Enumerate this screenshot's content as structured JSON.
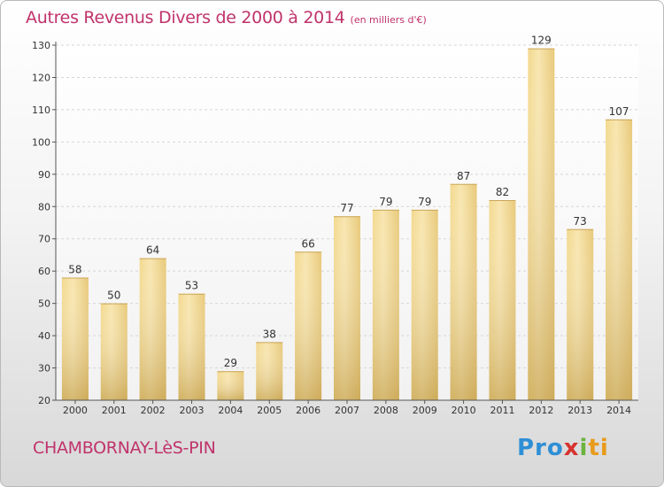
{
  "header": {
    "title": "Autres Revenus Divers de 2000 à 2014",
    "subtitle": "(en milliers d'€)"
  },
  "footer": {
    "place": "CHAMBORNAY-LèS-PIN",
    "logo": [
      "Pro",
      "x",
      "i",
      "ti"
    ]
  },
  "colors": {
    "title": "#c0336b",
    "bar_light": "#f6dea0",
    "bar_dark": "#c9a656"
  },
  "chart_data": {
    "type": "bar",
    "title": "Autres Revenus Divers de 2000 à 2014",
    "xlabel": "",
    "ylabel": "",
    "categories": [
      "2000",
      "2001",
      "2002",
      "2003",
      "2004",
      "2005",
      "2006",
      "2007",
      "2008",
      "2009",
      "2010",
      "2011",
      "2012",
      "2013",
      "2014"
    ],
    "values": [
      58,
      50,
      64,
      53,
      29,
      38,
      66,
      77,
      79,
      79,
      87,
      82,
      129,
      73,
      107
    ],
    "ylim": [
      20,
      130
    ],
    "yticks": [
      20,
      30,
      40,
      50,
      60,
      70,
      80,
      90,
      100,
      110,
      120,
      130
    ],
    "grid": true,
    "legend": "none"
  }
}
